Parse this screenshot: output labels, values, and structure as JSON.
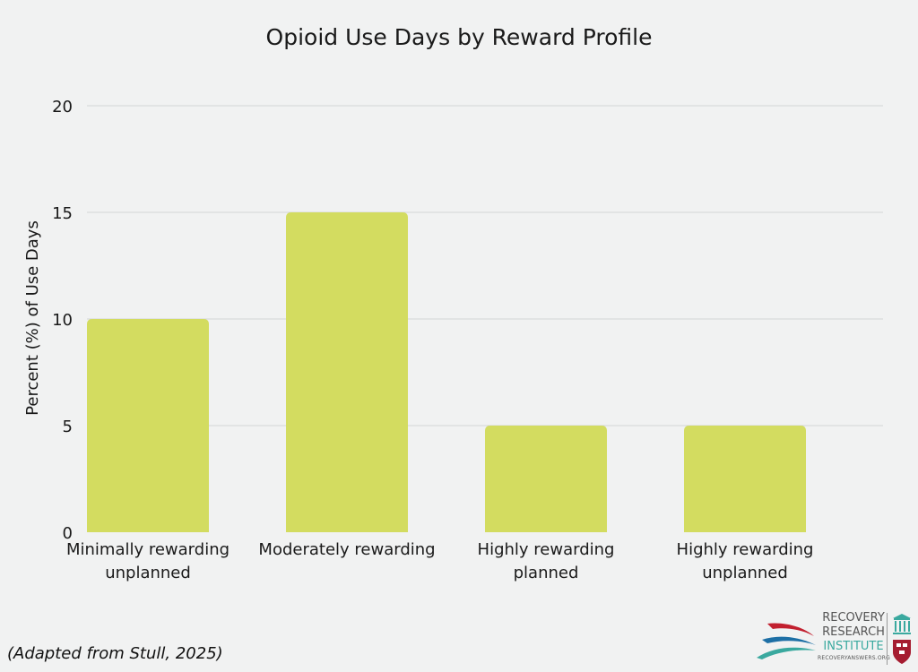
{
  "chart_data": {
    "type": "bar",
    "title": "Opioid Use Days by Reward Profile",
    "xlabel": "",
    "ylabel": "Percent (%) of Use Days",
    "ylim": [
      0,
      20
    ],
    "yticks": [
      0,
      5,
      10,
      15,
      20
    ],
    "ytick_labels": [
      "0",
      "5",
      "10",
      "15",
      "20"
    ],
    "categories": [
      [
        "Minimally rewarding",
        "unplanned"
      ],
      [
        "Moderately rewarding"
      ],
      [
        "Highly rewarding",
        "planned"
      ],
      [
        "Highly rewarding",
        "unplanned"
      ]
    ],
    "values": [
      10,
      15,
      5,
      5
    ],
    "bar_color": "#d3dc60",
    "grid": true,
    "legend": "none"
  },
  "note": "(Adapted from Stull, 2025)",
  "logo": {
    "line1": "RECOVERY",
    "line2": "RESEARCH",
    "line3": "INSTITUTE",
    "url": "RECOVERYANSWERS.ORG",
    "colors": {
      "red": "#c2202f",
      "blue": "#1d6fa5",
      "green": "#3aa99f",
      "harvard_red": "#a51c30"
    }
  }
}
